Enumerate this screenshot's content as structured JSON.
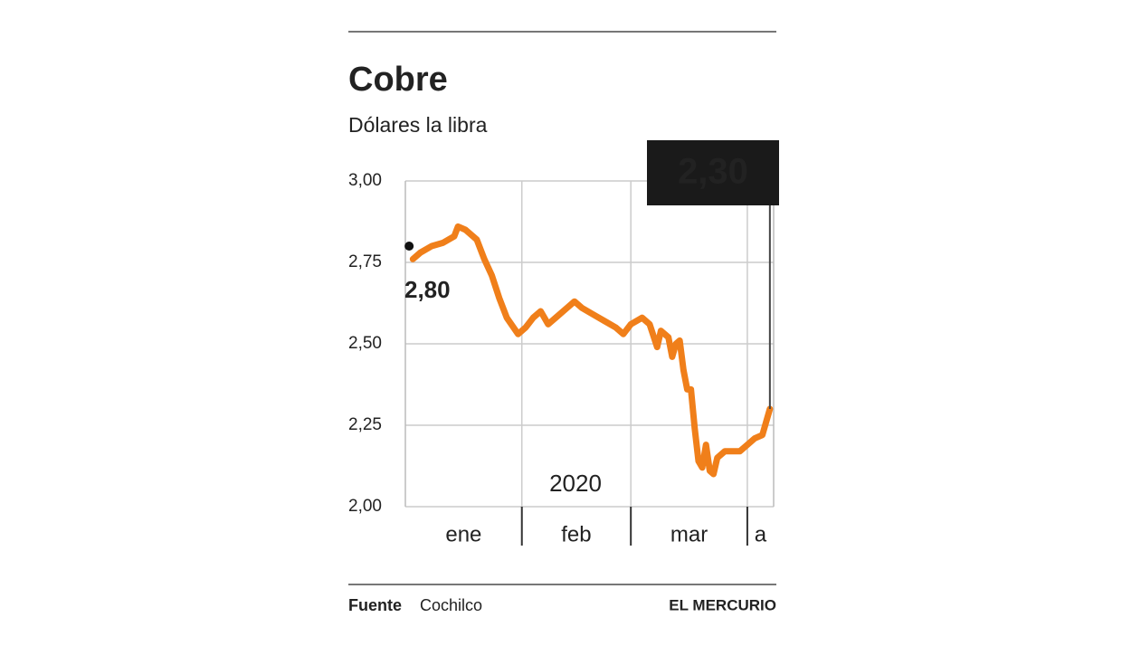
{
  "chart_data": {
    "type": "line",
    "title": "Cobre",
    "subtitle": "Dólares la libra",
    "annotation": "2020",
    "source_label": "Fuente",
    "source": "Cochilco",
    "publisher": "EL MERCURIO",
    "xlim": [
      0,
      98
    ],
    "xticks": [
      {
        "value": 0,
        "label": "ene"
      },
      {
        "value": 31,
        "label": "feb"
      },
      {
        "value": 60,
        "label": "mar"
      },
      {
        "value": 91,
        "label": "a"
      }
    ],
    "ylim": [
      2,
      3
    ],
    "yticks": [
      {
        "value": 3,
        "label": "3,00"
      },
      {
        "value": 2.75,
        "label": "2,75"
      },
      {
        "value": 2.5,
        "label": "2,50"
      },
      {
        "value": 2.25,
        "label": "2,25"
      },
      {
        "value": 2,
        "label": "2,00"
      }
    ],
    "grid": true,
    "series": [
      {
        "color": "#f07f1a",
        "x": [
          2,
          4,
          7,
          10,
          13,
          14,
          16,
          19,
          21,
          23,
          25,
          27,
          30,
          32,
          34,
          36,
          38,
          40,
          43,
          45,
          47,
          50,
          53,
          56,
          58,
          60,
          63,
          65,
          67,
          68,
          70,
          71,
          72,
          73,
          74,
          75,
          76,
          77,
          78,
          79,
          80,
          81,
          82,
          83,
          85,
          87,
          89,
          91,
          93,
          95,
          97
        ],
        "values": [
          2.76,
          2.78,
          2.8,
          2.81,
          2.83,
          2.86,
          2.85,
          2.82,
          2.76,
          2.71,
          2.64,
          2.58,
          2.53,
          2.55,
          2.58,
          2.6,
          2.56,
          2.58,
          2.61,
          2.63,
          2.61,
          2.59,
          2.57,
          2.55,
          2.53,
          2.56,
          2.58,
          2.56,
          2.49,
          2.54,
          2.52,
          2.46,
          2.5,
          2.51,
          2.42,
          2.36,
          2.36,
          2.24,
          2.14,
          2.12,
          2.19,
          2.11,
          2.1,
          2.15,
          2.17,
          2.17,
          2.17,
          2.19,
          2.21,
          2.22,
          2.3
        ]
      }
    ],
    "annotations": [
      {
        "x": 1,
        "value": 2.8,
        "label": "2,80"
      },
      {
        "x": 97,
        "value": 2.3,
        "label": "2,30"
      }
    ]
  }
}
